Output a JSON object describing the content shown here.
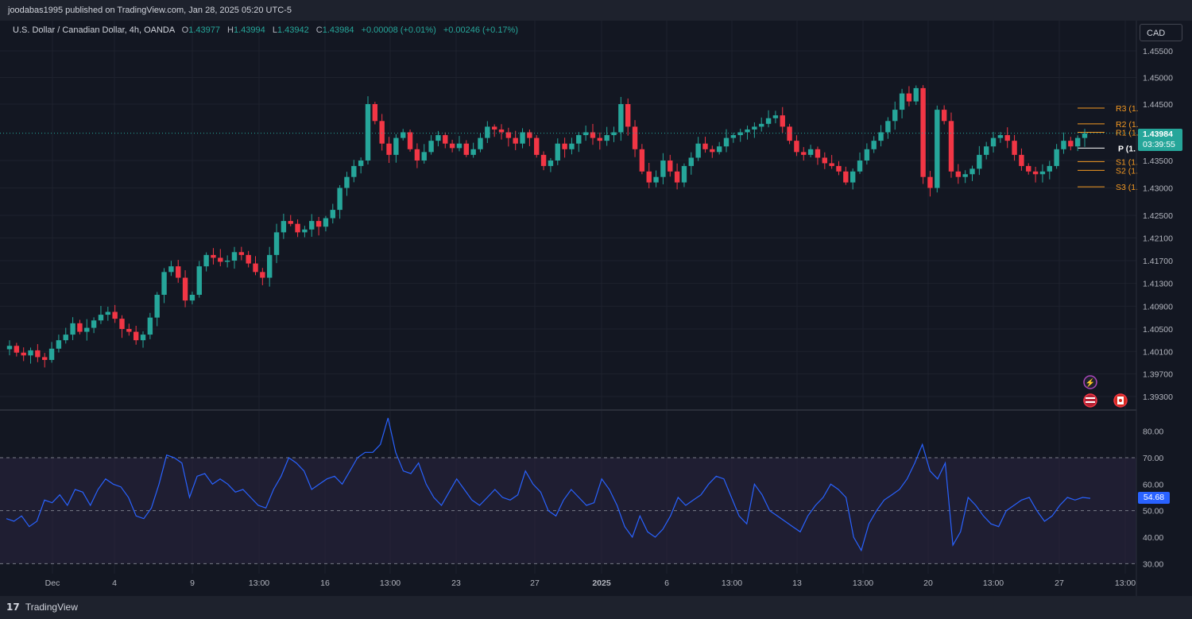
{
  "header": {
    "published_line": "joodabas1995 published on TradingView.com, Jan 28, 2025 05:20 UTC-5"
  },
  "legend": {
    "title": "U.S. Dollar / Canadian Dollar, 4h, OANDA",
    "open_label": "O",
    "open": "1.43977",
    "high_label": "H",
    "high": "1.43994",
    "low_label": "L",
    "low": "1.43942",
    "close_label": "C",
    "close": "1.43984",
    "change1": "+0.00008 (+0.01%)",
    "change2": "+0.00246 (+0.17%)"
  },
  "currency_button": "CAD",
  "price_badge": {
    "price": "1.43984",
    "countdown": "03:39:55",
    "color": "#26a69a"
  },
  "rsi_badge": {
    "value": "54.68",
    "color": "#2962ff"
  },
  "footer": {
    "brand": "TradingView",
    "icon": "tradingview-logo-icon"
  },
  "colors": {
    "up": "#26a69a",
    "down": "#f23645",
    "rsi": "#2962ff",
    "pivot": "#f59a23",
    "background": "#131722"
  },
  "chart_data": [
    {
      "type": "candlestick",
      "title": "U.S. Dollar / Canadian Dollar, 4h, OANDA",
      "yticks": [
        "1.45500",
        "1.45000",
        "1.44500",
        "1.43500",
        "1.43000",
        "1.42500",
        "1.42100",
        "1.41700",
        "1.41300",
        "1.40900",
        "1.40500",
        "1.40100",
        "1.39700",
        "1.39300"
      ],
      "xticks": [
        "Dec",
        "4",
        "9",
        "13:00",
        "16",
        "13:00",
        "23",
        "27",
        "2025",
        "6",
        "13:00",
        "13",
        "13:00",
        "20",
        "13:00",
        "27",
        "13:00"
      ],
      "current_price": 1.43984,
      "pivot_levels": [
        {
          "label": "R3 (1.",
          "value": 1.4443
        },
        {
          "label": "R2 (1.",
          "value": 1.4415
        },
        {
          "label": "R1 (1.",
          "value": 1.44
        },
        {
          "label": "P (1.",
          "value": 1.4372
        },
        {
          "label": "S1 (1.",
          "value": 1.4348
        },
        {
          "label": "S2 (1.",
          "value": 1.4332
        },
        {
          "label": "S3 (1.",
          "value": 1.4302
        }
      ],
      "close_path": [
        1.402,
        1.4008,
        1.4003,
        1.4012,
        1.4,
        1.3995,
        1.4015,
        1.403,
        1.404,
        1.406,
        1.4045,
        1.4052,
        1.4065,
        1.4075,
        1.408,
        1.4068,
        1.405,
        1.4045,
        1.403,
        1.404,
        1.407,
        1.411,
        1.415,
        1.416,
        1.414,
        1.41,
        1.411,
        1.416,
        1.418,
        1.4175,
        1.4168,
        1.417,
        1.4185,
        1.418,
        1.4165,
        1.415,
        1.414,
        1.418,
        1.422,
        1.424,
        1.4235,
        1.422,
        1.4225,
        1.424,
        1.423,
        1.4245,
        1.426,
        1.43,
        1.432,
        1.434,
        1.435,
        1.445,
        1.442,
        1.438,
        1.436,
        1.439,
        1.44,
        1.437,
        1.435,
        1.4365,
        1.4385,
        1.4395,
        1.438,
        1.4372,
        1.438,
        1.436,
        1.437,
        1.439,
        1.441,
        1.4405,
        1.44,
        1.439,
        1.438,
        1.44,
        1.439,
        1.436,
        1.434,
        1.435,
        1.438,
        1.437,
        1.438,
        1.4395,
        1.44,
        1.439,
        1.4385,
        1.4395,
        1.44,
        1.445,
        1.441,
        1.437,
        1.433,
        1.431,
        1.432,
        1.435,
        1.433,
        1.431,
        1.434,
        1.4355,
        1.438,
        1.437,
        1.4365,
        1.4375,
        1.439,
        1.4395,
        1.44,
        1.4405,
        1.441,
        1.4415,
        1.4425,
        1.443,
        1.441,
        1.4385,
        1.4365,
        1.436,
        1.437,
        1.4355,
        1.4345,
        1.434,
        1.433,
        1.431,
        1.433,
        1.435,
        1.437,
        1.4385,
        1.44,
        1.442,
        1.444,
        1.447,
        1.4455,
        1.448,
        1.432,
        1.43,
        1.444,
        1.442,
        1.433,
        1.432,
        1.4325,
        1.4335,
        1.436,
        1.4375,
        1.439,
        1.4395,
        1.4385,
        1.436,
        1.434,
        1.433,
        1.4325,
        1.433,
        1.434,
        1.437,
        1.4385,
        1.4375,
        1.439,
        1.4398
      ]
    },
    {
      "type": "line",
      "title": "RSI",
      "yticks": [
        "80.00",
        "70.00",
        "60.00",
        "50.00",
        "40.00",
        "30.00"
      ],
      "ylim": [
        28,
        85
      ],
      "bands": [
        70,
        50,
        30
      ],
      "last_value": 54.68,
      "values": [
        47,
        46,
        48,
        44,
        46,
        54,
        53,
        56,
        52,
        58,
        57,
        52,
        58,
        62,
        60,
        59,
        55,
        48,
        47,
        51,
        60,
        71,
        70,
        68,
        55,
        63,
        64,
        60,
        62,
        60,
        57,
        58,
        55,
        52,
        51,
        58,
        63,
        70,
        68,
        65,
        58,
        60,
        62,
        63,
        60,
        65,
        70,
        72,
        72,
        75,
        85,
        72,
        65,
        64,
        68,
        60,
        55,
        52,
        57,
        62,
        58,
        54,
        52,
        55,
        58,
        55,
        54,
        56,
        65,
        60,
        57,
        50,
        48,
        54,
        58,
        55,
        52,
        53,
        62,
        58,
        52,
        44,
        40,
        48,
        42,
        40,
        43,
        48,
        55,
        52,
        54,
        56,
        60,
        63,
        62,
        55,
        48,
        45,
        60,
        56,
        50,
        48,
        46,
        44,
        42,
        48,
        52,
        55,
        60,
        58,
        55,
        40,
        35,
        45,
        50,
        54,
        56,
        58,
        62,
        68,
        75,
        65,
        62,
        68,
        37,
        42,
        55,
        52,
        48,
        45,
        44,
        50,
        52,
        54,
        55,
        50,
        46,
        48,
        52,
        55,
        54,
        55,
        54.68
      ]
    }
  ]
}
